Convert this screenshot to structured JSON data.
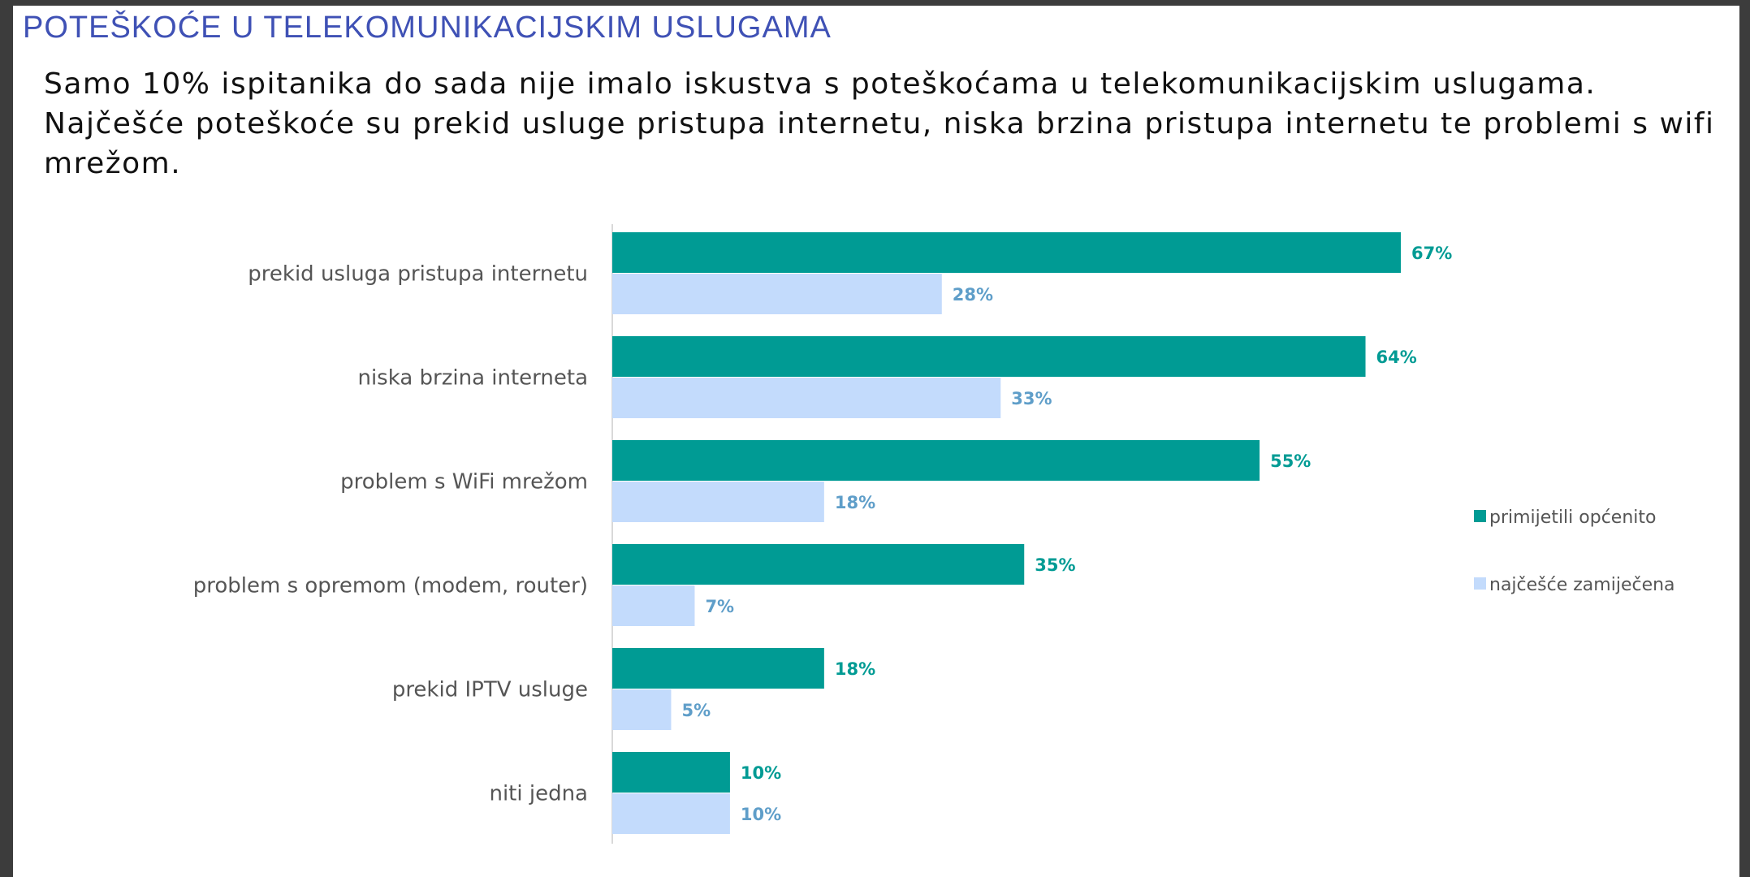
{
  "header": {
    "title": "POTEŠKOĆE U TELEKOMUNIKACIJSKIM USLUGAMA",
    "subtitle": "Samo 10% ispitanika do sada nije imalo iskustva s poteškoćama u telekomunikacijskim uslugama. Najčešće poteškoće su prekid usluge pristupa internetu, niska brzina pristupa internetu te problemi s wifi mrežom."
  },
  "chart_data": {
    "type": "bar",
    "orientation": "horizontal",
    "title": "",
    "xlabel": "",
    "ylabel": "",
    "xlim": [
      0,
      67
    ],
    "grid": false,
    "value_suffix": "%",
    "legend_position": "right",
    "categories": [
      "prekid usluga pristupa internetu",
      "niska brzina interneta",
      "problem s WiFi mrežom",
      "problem s opremom (modem, router)",
      "prekid IPTV usluge",
      "niti jedna"
    ],
    "series": [
      {
        "name": "primijetili općenito",
        "color": "#009b94",
        "label_color": "#009b94",
        "values": [
          67,
          64,
          55,
          35,
          18,
          10
        ]
      },
      {
        "name": "najčešće zamiječena",
        "color": "#c3dbfc",
        "label_color": "#5f9ec9",
        "values": [
          28,
          33,
          18,
          7,
          5,
          10
        ]
      }
    ]
  }
}
